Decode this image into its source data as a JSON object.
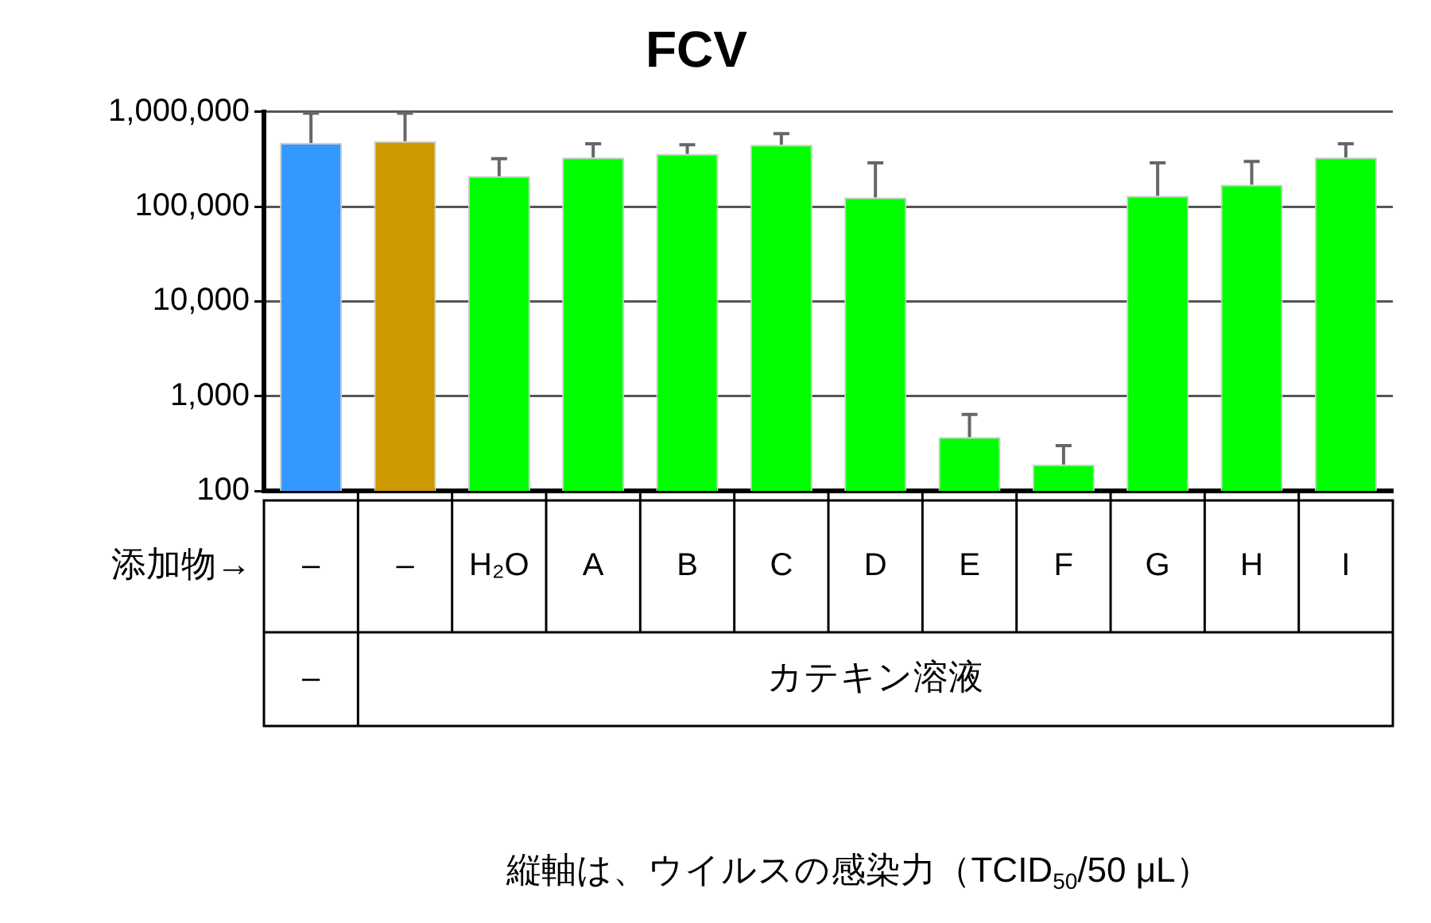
{
  "chart_data": {
    "type": "bar",
    "title": "FCV",
    "xlabel": "添加物→",
    "categories": [
      "–",
      "–",
      "H₂O",
      "A",
      "B",
      "C",
      "D",
      "E",
      "F",
      "G",
      "H",
      "I"
    ],
    "values": [
      470000,
      490000,
      210000,
      330000,
      360000,
      450000,
      125000,
      370,
      190,
      130000,
      170000,
      330000
    ],
    "colors": [
      "#3399ff",
      "#cc9900",
      "#00ff00",
      "#00ff00",
      "#00ff00",
      "#00ff00",
      "#00ff00",
      "#00ff00",
      "#00ff00",
      "#00ff00",
      "#00ff00",
      "#00ff00"
    ],
    "errors": [
      [
        470000,
        970000
      ],
      [
        490000,
        970000
      ],
      [
        210000,
        320000
      ],
      [
        330000,
        460000
      ],
      [
        360000,
        450000
      ],
      [
        450000,
        590000
      ],
      [
        125000,
        290000
      ],
      [
        370,
        640
      ],
      [
        190,
        300
      ],
      [
        130000,
        290000
      ],
      [
        170000,
        300000
      ],
      [
        330000,
        460000
      ]
    ],
    "log": true,
    "ylim": [
      100,
      1000000
    ],
    "yticks": [
      {
        "value": 100,
        "label": "100"
      },
      {
        "value": 1000,
        "label": "1,000"
      },
      {
        "value": 10000,
        "label": "10,000"
      },
      {
        "value": 100000,
        "label": "100,000"
      },
      {
        "value": 1000000,
        "label": "1,000,000"
      }
    ],
    "grid": "y",
    "legend": false,
    "annotations": [
      "–",
      "カテキン溶液",
      "縦軸は、ウイルスの感染力（TCID$_{50}$/50 μL）"
    ]
  }
}
